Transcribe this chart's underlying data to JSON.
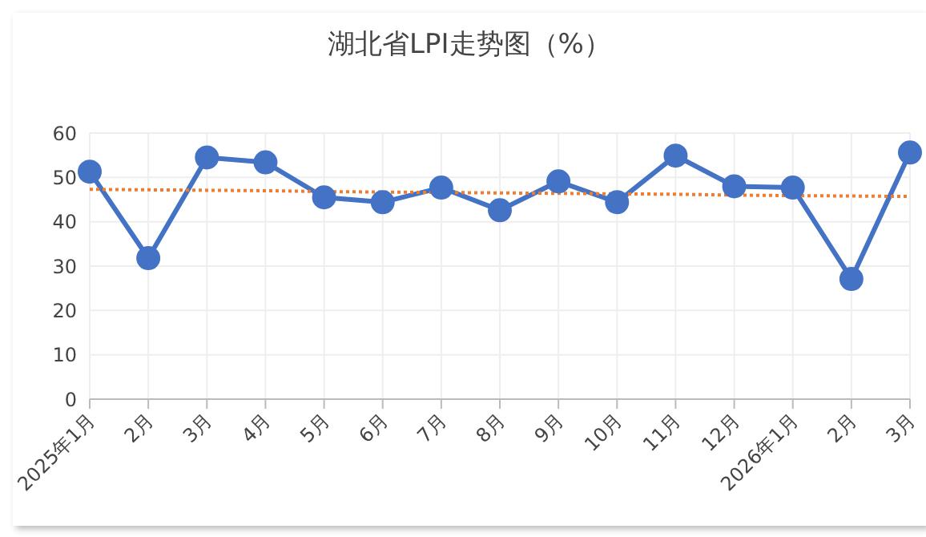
{
  "chart_data": {
    "type": "line",
    "title": "湖北省LPI走势图（%）",
    "categories": [
      "2025年1月",
      "2月",
      "3月",
      "4月",
      "5月",
      "6月",
      "7月",
      "8月",
      "9月",
      "10月",
      "11月",
      "12月",
      "2026年1月",
      "2月",
      "3月"
    ],
    "series": [
      {
        "color": "#4472c4",
        "marker": "circle",
        "line_style": "solid",
        "values": [
          51.3,
          31.8,
          54.5,
          53.4,
          45.5,
          44.4,
          47.7,
          42.6,
          49.1,
          44.4,
          54.9,
          48.0,
          47.7,
          27.1,
          55.6
        ]
      },
      {
        "color": "#ed7d31",
        "marker": "none",
        "line_style": "dotted",
        "values": [
          47.3,
          47.2,
          47.1,
          47.0,
          46.8,
          46.7,
          46.6,
          46.5,
          46.4,
          46.3,
          46.2,
          46.0,
          45.9,
          45.8,
          45.7
        ]
      }
    ],
    "ylim": [
      0,
      60
    ],
    "yticks": [
      0,
      10,
      20,
      30,
      40,
      50,
      60
    ],
    "grid": true,
    "legend": false
  }
}
